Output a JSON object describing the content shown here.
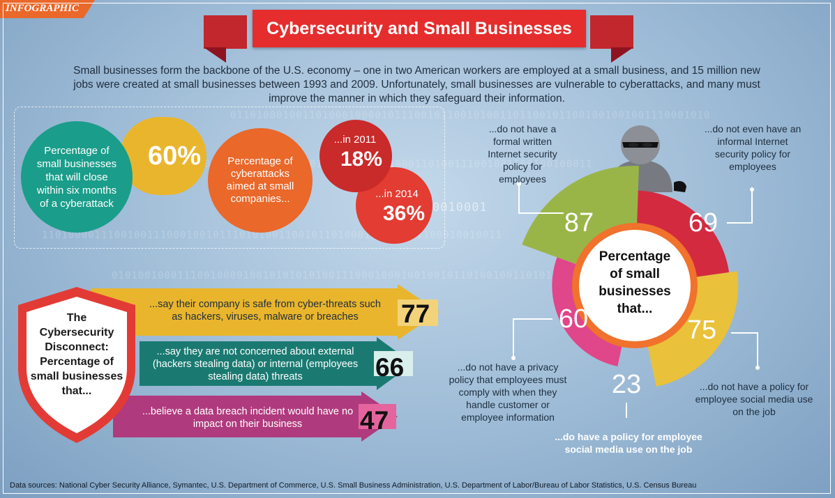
{
  "tag": "INFOGRAPHIC",
  "title": "Cybersecurity and Small Businesses",
  "intro": "Small businesses form the backbone of the U.S. economy – one in two American workers are employed at a small business, and 15 million new jobs were created at small businesses between 1993 and 2009. Unfortunately, small businesses are vulnerable to cyberattacks, and many must improve the manner in which they safeguard their information.",
  "stat_close": {
    "label": "Percentage of small businesses that will close within six months of a cyberattack",
    "value": "60%"
  },
  "stat_attacks": {
    "label": "Percentage of cyberattacks aimed at small companies...",
    "y2011_label": "...in 2011",
    "y2011_value": "18%",
    "y2014_label": "...in 2014",
    "y2014_value": "36%"
  },
  "background_binary": [
    "0110100010011010001000010111001011001010011011001011001001001001110001010",
    "01001001101001100101000100110101010001011000110100111001001100100100011",
    "0010001",
    "1101000011100100111000100101110101001100101101000110011001100010010011",
    "0101001000111001000010010101010100111000100010010010110100100110101001"
  ],
  "disconnect": {
    "shield_label": "The Cybersecurity Disconnect: Percentage of small businesses that...",
    "rows": [
      {
        "text": "...say their company is safe from cyber-threats such as hackers, viruses, malware or breaches",
        "value": "77",
        "color": "#e9b52c"
      },
      {
        "text": "...say they are not concerned about external (hackers stealing data) or internal (employees stealing data) threats",
        "value": "66",
        "color": "#1a7a72"
      },
      {
        "text": "...believe a data breach incident would have no impact on their business",
        "value": "47",
        "color": "#b03a7e"
      }
    ]
  },
  "chart_data": {
    "type": "pie",
    "center_label": "Percentage of small businesses that...",
    "slices": [
      {
        "value": 87,
        "label": "...do not have a formal written Internet security policy for employees",
        "color": "#99b548"
      },
      {
        "value": 69,
        "label": "...do not even have an informal Internet security policy for employees",
        "color": "#d32a3f"
      },
      {
        "value": 75,
        "label": "...do not have a policy for employee social media use on the job",
        "color": "#e9c13a"
      },
      {
        "value": 23,
        "label": "...do have a policy for employee social media use on the job",
        "color": "#1a9d8a"
      },
      {
        "value": 60,
        "label": "...do not have a privacy policy that employees must comply with when they handle customer or employee information",
        "color": "#e0468a"
      }
    ]
  },
  "sources": "Data sources: National Cyber Security Alliance, Symantec, U.S. Department of Commerce, U.S. Small Business Administration, U.S. Department of Labor/Bureau of Labor Statistics, U.S. Census Bureau"
}
